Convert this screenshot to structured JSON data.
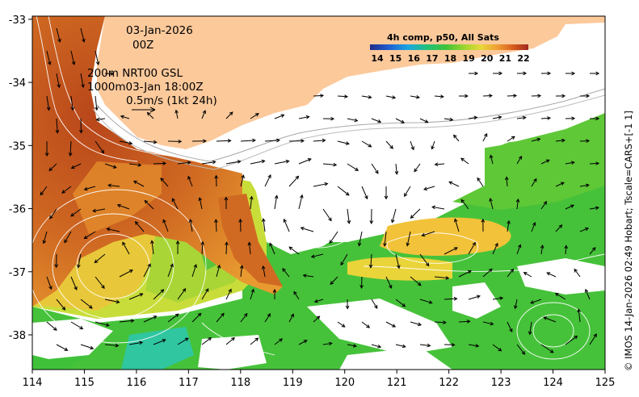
{
  "annotations": {
    "date": "03-Jan-2026",
    "time": "00Z",
    "contour_info": "200m  NRT00 GSL",
    "contour_info2": "1000m03-Jan 18:00Z",
    "vector_scale": "0.5m/s (1kt 24h)"
  },
  "colorbar": {
    "title": "4h comp, p50, All Sats",
    "ticks": [
      "14",
      "15",
      "16",
      "17",
      "18",
      "19",
      "20",
      "21",
      "22"
    ],
    "colors": [
      "#1f2a8a",
      "#1f5fd0",
      "#1aa6e0",
      "#22c07a",
      "#3fc23a",
      "#9fd62f",
      "#e6d83a",
      "#f0a035",
      "#d9601f",
      "#a0281e"
    ]
  },
  "credit": "© IMOS 14-Jan-2026 02:49 Hobart; Tscale=CARS+[-1 1]",
  "axes": {
    "x_ticks": [
      "114",
      "115",
      "116",
      "117",
      "118",
      "119",
      "120",
      "121",
      "122",
      "123",
      "124",
      "125"
    ],
    "y_ticks": [
      "-33",
      "-34",
      "-35",
      "-36",
      "-37",
      "-38"
    ],
    "xlim": [
      114,
      125
    ],
    "ylim": [
      -38.55,
      -32.95
    ]
  },
  "colors": {
    "land": "#fcc99b",
    "no_data": "#ffffff",
    "warm_core": "#c8581a",
    "contour": "#ffffff",
    "isobath": "#b0b0b0",
    "arrow": "#000000"
  }
}
